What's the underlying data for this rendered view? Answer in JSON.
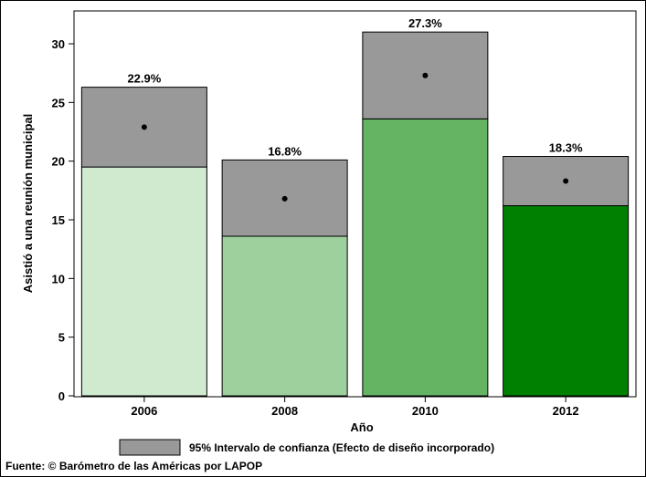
{
  "chart_data": {
    "type": "bar",
    "categories": [
      "2006",
      "2008",
      "2010",
      "2012"
    ],
    "values": [
      22.9,
      16.8,
      27.3,
      18.3
    ],
    "ci_lower": [
      19.5,
      13.6,
      23.6,
      16.2
    ],
    "ci_upper": [
      26.3,
      20.1,
      31.0,
      20.4
    ],
    "data_labels": [
      "22.9%",
      "16.8%",
      "27.3%",
      "18.3%"
    ],
    "bar_colors": [
      "#d0ead0",
      "#9dd09d",
      "#64b464",
      "#008000"
    ],
    "ci_color": "#999999",
    "xlabel": "Año",
    "ylabel": "Asistió a una reunión municipal",
    "ylim": [
      0,
      32
    ],
    "yticks": [
      0,
      5,
      10,
      15,
      20,
      25,
      30
    ],
    "grid": false,
    "legend": {
      "position": "bottom",
      "entries": [
        {
          "label": "95% Intervalo de confianza (Efecto de diseño incorporado)",
          "color": "#999999"
        }
      ]
    }
  },
  "footer": {
    "source": "Fuente: © Barómetro de las Américas por LAPOP"
  }
}
